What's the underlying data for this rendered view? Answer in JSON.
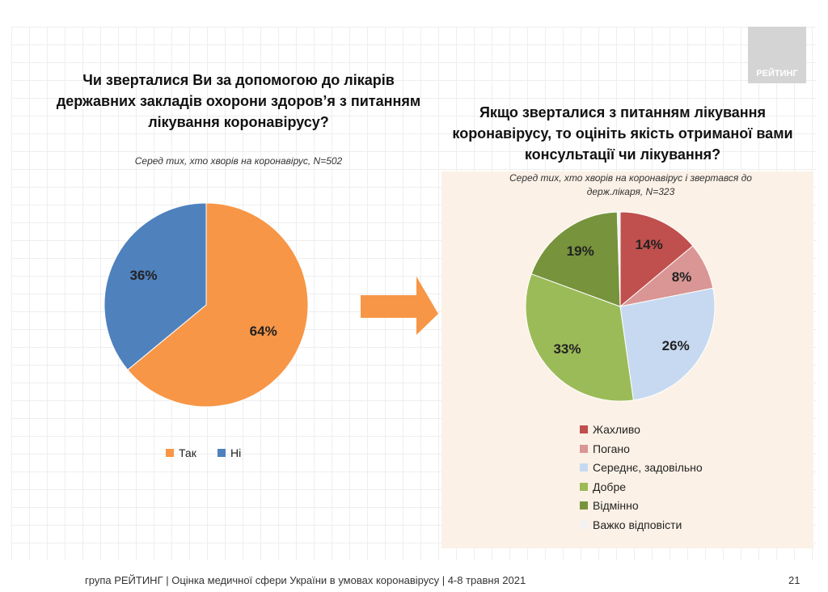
{
  "logo": "РЕЙТИНГ",
  "footer": "група РЕЙТИНГ  |  Оцінка медичної сфери України в умовах коронавірусу  | 4-8 травня 2021",
  "page_number": "21",
  "chart_data": [
    {
      "type": "pie",
      "title": "Чи зверталися Ви за допомогою до лікарів державних закладів охорони здоров’я з питанням лікування коронавірусу?",
      "title_lines": [
        "Чи зверталися Ви за допомогою до лікарів",
        "державних закладів охорони здоров’я з питанням",
        "лікування коронавірусу?"
      ],
      "subtitle": "Серед тих, хто хворів на коронавірус, N=502",
      "categories": [
        "Так",
        "Ні"
      ],
      "values": [
        64,
        36
      ],
      "labels": [
        "64%",
        "36%"
      ],
      "colors": [
        "#f79646",
        "#4f81bd"
      ],
      "legend": "bottom"
    },
    {
      "type": "pie",
      "title": "Якщо зверталися з питанням лікування коронавірусу, то оцініть якість отриманої вами консультації чи лікування?",
      "title_lines": [
        "Якщо зверталися з питанням лікування",
        "коронавірусу, то оцініть якість отриманої вами",
        "консультації чи лікування?"
      ],
      "subtitle_lines": [
        "Серед тих, хто хворів на коронавірус і звертався до",
        "держ.лікаря, N=323"
      ],
      "categories": [
        "Жахливо",
        "Погано",
        "Середнє, задовільно",
        "Добре",
        "Відмінно",
        "Важко відповісти"
      ],
      "values": [
        14,
        8,
        26,
        33,
        19,
        0.5
      ],
      "labels": [
        "14%",
        "8%",
        "26%",
        "33%",
        "19%",
        ""
      ],
      "colors": [
        "#c0504d",
        "#d99694",
        "#c6d9f1",
        "#9bbb59",
        "#77933c",
        "#f2f2f2"
      ],
      "legend": "bottom"
    }
  ]
}
